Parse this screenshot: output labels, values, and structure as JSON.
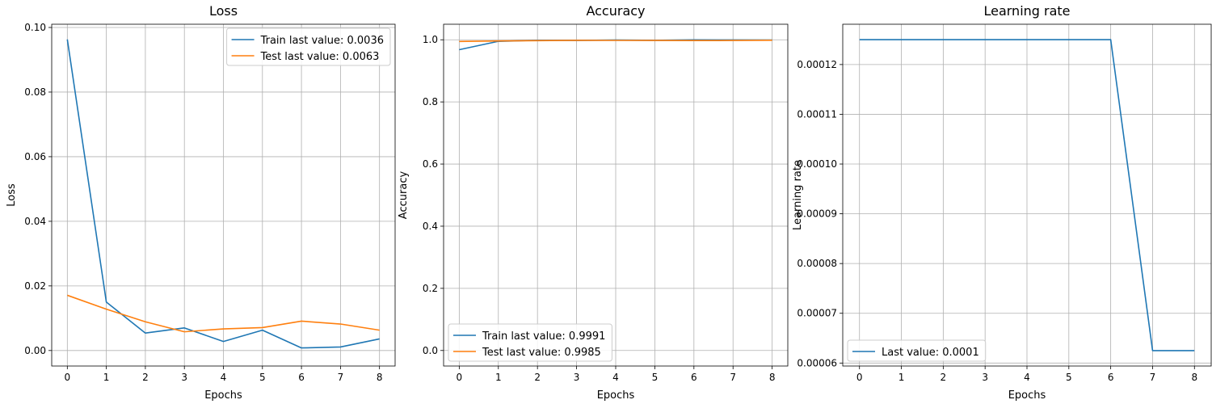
{
  "colors": {
    "train": "#1f77b4",
    "test": "#ff7f0e",
    "grid": "#b0b0b0",
    "axis": "#000000",
    "legend_border": "#cccccc"
  },
  "chart_data": [
    {
      "type": "line",
      "title": "Loss",
      "xlabel": "Epochs",
      "ylabel": "Loss",
      "xlim": [
        -0.4,
        8.4
      ],
      "ylim": [
        -0.0048,
        0.101
      ],
      "grid": true,
      "legend_position": "upper-right",
      "x": [
        0,
        1,
        2,
        3,
        4,
        5,
        6,
        7,
        8
      ],
      "x_tick_labels": [
        "0",
        "1",
        "2",
        "3",
        "4",
        "5",
        "6",
        "7",
        "8"
      ],
      "y_ticks": [
        0.0,
        0.02,
        0.04,
        0.06,
        0.08,
        0.1
      ],
      "y_tick_labels": [
        "0.00",
        "0.02",
        "0.04",
        "0.06",
        "0.08",
        "0.10"
      ],
      "series": [
        {
          "name": "Train last value: 0.0036",
          "color_key": "train",
          "values": [
            0.0963,
            0.015,
            0.0054,
            0.007,
            0.0028,
            0.0063,
            0.0008,
            0.0011,
            0.0036
          ]
        },
        {
          "name": "Test last value: 0.0063",
          "color_key": "test",
          "values": [
            0.0171,
            0.0128,
            0.0089,
            0.0058,
            0.0067,
            0.0071,
            0.0091,
            0.0082,
            0.0063
          ]
        }
      ]
    },
    {
      "type": "line",
      "title": "Accuracy",
      "xlabel": "Epochs",
      "ylabel": "Accuracy",
      "xlim": [
        -0.4,
        8.4
      ],
      "ylim": [
        -0.05,
        1.05
      ],
      "grid": true,
      "legend_position": "lower-left",
      "x": [
        0,
        1,
        2,
        3,
        4,
        5,
        6,
        7,
        8
      ],
      "x_tick_labels": [
        "0",
        "1",
        "2",
        "3",
        "4",
        "5",
        "6",
        "7",
        "8"
      ],
      "y_ticks": [
        0.0,
        0.2,
        0.4,
        0.6,
        0.8,
        1.0
      ],
      "y_tick_labels": [
        "0.0",
        "0.2",
        "0.4",
        "0.6",
        "0.8",
        "1.0"
      ],
      "series": [
        {
          "name": "Train last value: 0.9991",
          "color_key": "train",
          "values": [
            0.968,
            0.995,
            0.9983,
            0.9979,
            0.9991,
            0.9981,
            0.9997,
            0.9996,
            0.9991
          ]
        },
        {
          "name": "Test last value: 0.9985",
          "color_key": "test",
          "values": [
            0.9946,
            0.9962,
            0.9973,
            0.9981,
            0.998,
            0.9979,
            0.9974,
            0.9977,
            0.9985
          ]
        }
      ]
    },
    {
      "type": "line",
      "title": "Learning rate",
      "xlabel": "Epochs",
      "ylabel": "Learning rate",
      "xlim": [
        -0.4,
        8.4
      ],
      "ylim": [
        5.94e-05,
        0.0001281
      ],
      "grid": true,
      "legend_position": "lower-left",
      "x": [
        0,
        1,
        2,
        3,
        4,
        5,
        6,
        7,
        8
      ],
      "x_tick_labels": [
        "0",
        "1",
        "2",
        "3",
        "4",
        "5",
        "6",
        "7",
        "8"
      ],
      "y_ticks": [
        6e-05,
        7e-05,
        8e-05,
        9e-05,
        0.0001,
        0.00011,
        0.00012
      ],
      "y_tick_labels": [
        "0.00006",
        "0.00007",
        "0.00008",
        "0.00009",
        "0.00010",
        "0.00011",
        "0.00012"
      ],
      "series": [
        {
          "name": "Last value: 0.0001",
          "color_key": "train",
          "values": [
            0.000125,
            0.000125,
            0.000125,
            0.000125,
            0.000125,
            0.000125,
            0.000125,
            6.25e-05,
            6.25e-05
          ]
        }
      ]
    }
  ]
}
